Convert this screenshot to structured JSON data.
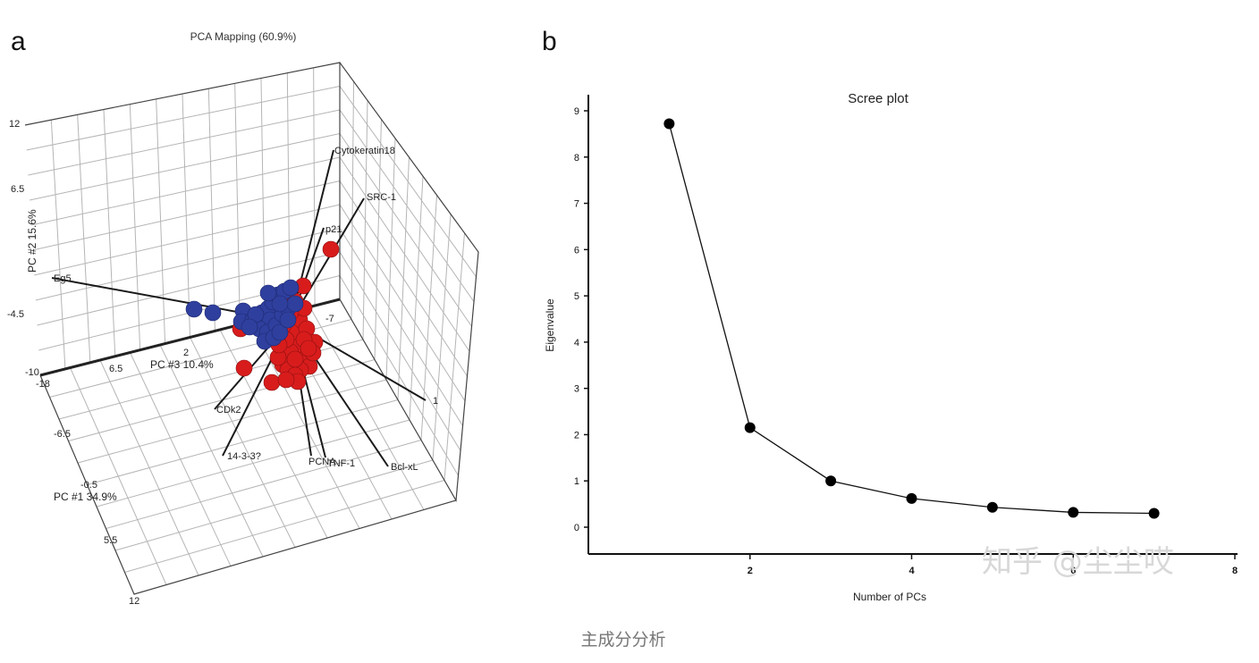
{
  "panels": {
    "a_label": "a",
    "b_label": "b"
  },
  "chart_data": [
    {
      "type": "scatter",
      "title": "PCA Mapping (60.9%)",
      "axes": {
        "pc1_label": "PC #1 34.9%",
        "pc2_label": "PC #2 15.6%",
        "pc3_label": "PC #3 10.4%",
        "pc2_ticks": [
          "12",
          "6.5",
          "-4.5",
          "-10"
        ],
        "pc1_ticks": [
          "-18",
          "-6.5",
          "-0.5",
          "5.5",
          "12"
        ],
        "pc3_ticks": [
          "6.5",
          "2",
          "-7",
          "1"
        ]
      },
      "loadings": [
        "Cytokeratin18",
        "SRC-1",
        "p21",
        "Eg5",
        "CDk2",
        "14-3-3?",
        "PCNA",
        "TNF-1",
        "Bcl-xL"
      ],
      "groups": [
        {
          "color": "#2f3f9e",
          "count": 26
        },
        {
          "color": "#d81c1c",
          "count": 30
        }
      ]
    },
    {
      "type": "line",
      "title": "Scree plot",
      "xlabel": "Number of PCs",
      "ylabel": "Eigenvalue",
      "xlim": [
        0,
        8
      ],
      "ylim": [
        0,
        9
      ],
      "xticks": [
        2,
        4,
        6,
        8
      ],
      "yticks": [
        0,
        1,
        2,
        3,
        4,
        5,
        6,
        7,
        8,
        9
      ],
      "x": [
        1,
        2,
        3,
        4,
        5,
        6,
        7
      ],
      "values": [
        8.72,
        2.15,
        1.0,
        0.62,
        0.43,
        0.32,
        0.3
      ],
      "marker": "circle"
    }
  ],
  "watermark": "知乎 @尘尘哎",
  "caption": "主成分分析"
}
